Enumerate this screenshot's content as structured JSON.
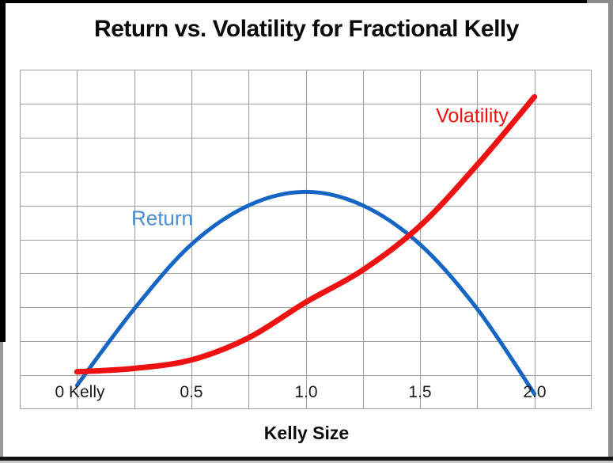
{
  "window": {
    "background": "#ffffff",
    "frame_gray": "#8c8c8c",
    "frame_black": "#000000"
  },
  "title": {
    "text": "Return vs. Volatility for Fractional Kelly",
    "color": "#0a0a0a"
  },
  "x_axis": {
    "label": "Kelly Size",
    "ticks": [
      "0 Kelly",
      "0.5",
      "1.0",
      "1.5",
      "2.0"
    ],
    "tick_color": "#1a1a1a"
  },
  "series_labels": {
    "return_text": "Return",
    "return_color": "#4a8fd3",
    "volatility_text": "Volatility",
    "volatility_color": "#ed1111"
  },
  "chart_data": {
    "type": "line",
    "title": "Return vs. Volatility for Fractional Kelly",
    "xlabel": "Kelly Size",
    "ylabel": "",
    "x": [
      0,
      0.25,
      0.5,
      0.75,
      1.0,
      1.25,
      1.5,
      1.75,
      2.0
    ],
    "x_tick_positions": [
      0,
      0.5,
      1.0,
      1.5,
      2.0
    ],
    "x_tick_labels": [
      "0 Kelly",
      "0.5",
      "1.0",
      "1.5",
      "2.0"
    ],
    "series": [
      {
        "name": "Return",
        "color": "#1565c4",
        "stroke_width": 5,
        "values": [
          -0.3,
          1.95,
          3.85,
          5.0,
          5.4,
          5.0,
          3.85,
          1.95,
          -0.55
        ],
        "note": "inverted parabola; peak ~5.4 grid units at 1.0 Kelly; zero near 0 and ~1.95 Kelly"
      },
      {
        "name": "Volatility",
        "color": "#ed1111",
        "stroke_width": 7,
        "values": [
          0.1,
          0.2,
          0.45,
          1.1,
          2.15,
          3.1,
          4.4,
          6.2,
          8.2
        ],
        "note": "convex increasing, roughly quadratic in Kelly fraction"
      }
    ],
    "xlim": [
      -0.25,
      2.25
    ],
    "ylim": [
      -1,
      9
    ],
    "y_axis_labels_visible": false,
    "grid": {
      "on": true,
      "cols": 10,
      "rows": 10,
      "color": "#a0a0a0"
    },
    "legend": "inline curve labels"
  }
}
